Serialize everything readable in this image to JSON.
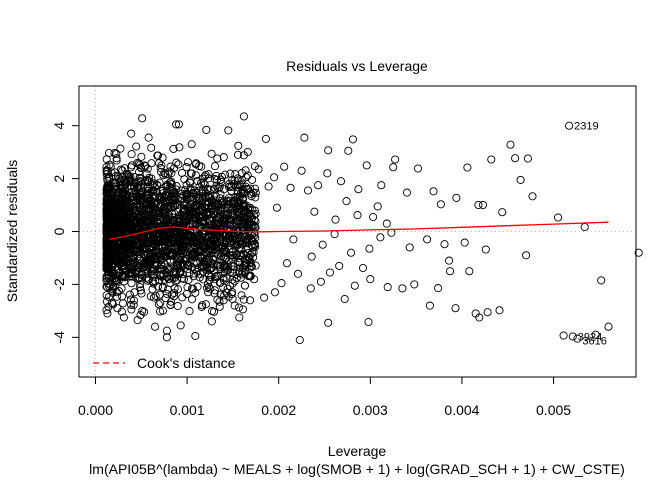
{
  "chart_data": {
    "type": "scatter",
    "title": "Residuals vs Leverage",
    "xlabel": "Leverage",
    "ylabel": "Standardized residuals",
    "subtitle": "lm(API05B^(lambda) ~ MEALS + log(SMOB + 1) + log(GRAD_SCH + 1) + CW_CSTE)",
    "xlim": [
      -0.00018,
      0.0059
    ],
    "ylim": [
      -5.5,
      5.5
    ],
    "x_ticks": [
      0.0,
      0.001,
      0.002,
      0.003,
      0.004,
      0.005
    ],
    "x_tick_labels": [
      "0.000",
      "0.001",
      "0.002",
      "0.003",
      "0.004",
      "0.005"
    ],
    "y_ticks": [
      -4,
      -2,
      0,
      2,
      4
    ],
    "y_tick_labels": [
      "-4",
      "-2",
      "0",
      "2",
      "4"
    ],
    "grid": false,
    "reference_lines": {
      "h": 0,
      "v": 0,
      "style": "dotted",
      "color": "#bbbbbb"
    },
    "legend": {
      "placement": "bottom-left",
      "entries": [
        {
          "label": "Cook's distance",
          "color": "#ff0000",
          "style": "dashed"
        }
      ]
    },
    "point_color": "#000000",
    "smooth_color": "#ff0000",
    "points": [
      [
        0.00051,
        4.28
      ],
      [
        0.00088,
        4.05
      ],
      [
        0.00091,
        4.05
      ],
      [
        0.00162,
        4.35
      ],
      [
        0.00039,
        3.7
      ],
      [
        0.00058,
        3.55
      ],
      [
        0.00105,
        3.3
      ],
      [
        0.00121,
        3.84
      ],
      [
        0.00145,
        3.82
      ],
      [
        0.00186,
        3.5
      ],
      [
        0.00228,
        3.55
      ],
      [
        0.00254,
        3.07
      ],
      [
        0.00281,
        3.48
      ],
      [
        0.00276,
        3.05
      ],
      [
        0.00327,
        2.72
      ],
      [
        0.00325,
        2.43
      ],
      [
        0.0034,
        1.47
      ],
      [
        0.00352,
        2.38
      ],
      [
        0.00369,
        1.52
      ],
      [
        0.00377,
        1.03
      ],
      [
        0.00394,
        1.27
      ],
      [
        0.00406,
        2.42
      ],
      [
        0.00418,
        1.0
      ],
      [
        0.00423,
        1.0
      ],
      [
        0.00432,
        2.72
      ],
      [
        0.00444,
        0.73
      ],
      [
        0.00453,
        3.28
      ],
      [
        0.00458,
        2.77
      ],
      [
        0.00472,
        2.76
      ],
      [
        0.00464,
        1.95
      ],
      [
        0.00477,
        1.33
      ],
      [
        0.00505,
        0.53
      ],
      [
        0.00534,
        0.17
      ],
      [
        0.00261,
        -0.1
      ],
      [
        0.00279,
        -0.8
      ],
      [
        0.00299,
        -0.65
      ],
      [
        0.00311,
        -0.22
      ],
      [
        0.00323,
        -0.05
      ],
      [
        0.00343,
        -0.6
      ],
      [
        0.00362,
        -0.3
      ],
      [
        0.00381,
        -0.48
      ],
      [
        0.00386,
        -1.1
      ],
      [
        0.00403,
        -0.42
      ],
      [
        0.00426,
        -0.68
      ],
      [
        0.0047,
        -0.9
      ],
      [
        0.00292,
        -1.38
      ],
      [
        0.00266,
        -1.3
      ],
      [
        0.00283,
        -2.05
      ],
      [
        0.003,
        -1.8
      ],
      [
        0.00319,
        -2.1
      ],
      [
        0.00335,
        -2.15
      ],
      [
        0.00348,
        -2.0
      ],
      [
        0.00374,
        -2.14
      ],
      [
        0.00365,
        -2.8
      ],
      [
        0.00387,
        -1.5
      ],
      [
        0.00393,
        -2.9
      ],
      [
        0.00415,
        -3.1
      ],
      [
        0.00428,
        -3.05
      ],
      [
        0.00441,
        -2.98
      ],
      [
        0.00419,
        -3.25
      ],
      [
        0.00408,
        -1.5
      ],
      [
        0.00552,
        -1.85
      ],
      [
        0.00593,
        -0.8
      ],
      [
        0.0056,
        -3.6
      ],
      [
        0.00546,
        -3.9
      ],
      [
        0.00521,
        -3.97
      ],
      [
        0.00511,
        -3.93
      ],
      [
        0.00526,
        -4.05
      ],
      [
        0.00223,
        -4.1
      ],
      [
        0.00298,
        -3.42
      ],
      [
        0.00254,
        -3.45
      ],
      [
        0.00152,
        -2.8
      ],
      [
        0.00157,
        -3.25
      ],
      [
        0.00127,
        -3.4
      ],
      [
        0.00078,
        -4.0
      ],
      [
        0.00078,
        -3.75
      ],
      [
        0.00093,
        -3.55
      ],
      [
        0.00109,
        -3.95
      ],
      [
        0.00065,
        -3.6
      ],
      [
        0.00046,
        -3.35
      ],
      [
        0.00031,
        -3.25
      ],
      [
        0.00051,
        -3.0
      ],
      [
        0.00024,
        -2.9
      ],
      [
        0.00018,
        -2.7
      ],
      [
        0.00235,
        -2.15
      ],
      [
        0.00196,
        -2.3
      ],
      [
        0.00203,
        -1.95
      ],
      [
        0.00184,
        -2.5
      ],
      [
        0.0014,
        -2.6
      ],
      [
        0.00116,
        -2.85
      ],
      [
        0.00272,
        -2.55
      ],
      [
        0.00206,
        2.45
      ],
      [
        0.00225,
        2.3
      ],
      [
        0.00195,
        2.05
      ],
      [
        0.00171,
        1.95
      ],
      [
        0.00243,
        1.75
      ],
      [
        0.00178,
        2.35
      ],
      [
        0.00189,
        1.7
      ],
      [
        0.00213,
        1.65
      ],
      [
        0.00232,
        1.55
      ],
      [
        0.00253,
        2.2
      ],
      [
        0.00268,
        1.9
      ],
      [
        0.00287,
        1.6
      ],
      [
        0.00296,
        2.5
      ],
      [
        0.00312,
        1.75
      ],
      [
        0.00308,
        0.95
      ],
      [
        0.00239,
        0.75
      ],
      [
        0.00262,
        0.45
      ],
      [
        0.00274,
        1.15
      ],
      [
        0.00286,
        0.62
      ],
      [
        0.00303,
        0.55
      ],
      [
        0.00318,
        0.3
      ],
      [
        0.00248,
        -0.5
      ],
      [
        0.00236,
        -0.95
      ],
      [
        0.00221,
        -1.6
      ],
      [
        0.00209,
        -1.2
      ],
      [
        0.00256,
        -1.55
      ],
      [
        0.00246,
        -1.9
      ],
      [
        0.00216,
        -0.3
      ],
      [
        0.00198,
        0.9
      ],
      [
        0.00517,
        4.0
      ]
    ],
    "smooth_line": [
      [
        0.00015,
        -0.3
      ],
      [
        0.0003,
        -0.2
      ],
      [
        0.0005,
        -0.04
      ],
      [
        0.0007,
        0.13
      ],
      [
        0.00085,
        0.17
      ],
      [
        0.001,
        0.12
      ],
      [
        0.0012,
        0.06
      ],
      [
        0.0014,
        0.03
      ],
      [
        0.0016,
        0.0
      ],
      [
        0.0018,
        -0.01
      ],
      [
        0.002,
        0.0
      ],
      [
        0.0025,
        0.02
      ],
      [
        0.003,
        0.06
      ],
      [
        0.0035,
        0.1
      ],
      [
        0.004,
        0.16
      ],
      [
        0.0045,
        0.22
      ],
      [
        0.005,
        0.28
      ],
      [
        0.0056,
        0.35
      ]
    ],
    "annotations": [
      {
        "x": 0.00517,
        "y": 4.0,
        "text": "2319",
        "anchor": "start"
      },
      {
        "x": 0.00521,
        "y": -3.97,
        "text": "3924",
        "anchor": "start"
      },
      {
        "x": 0.00526,
        "y": -4.05,
        "text": "3616",
        "anchor": "start"
      }
    ],
    "cloud": {
      "count": 2400,
      "x_range": [
        0.00012,
        0.00175
      ],
      "y_sd": 1.15,
      "note": "dense cloud of points"
    }
  }
}
